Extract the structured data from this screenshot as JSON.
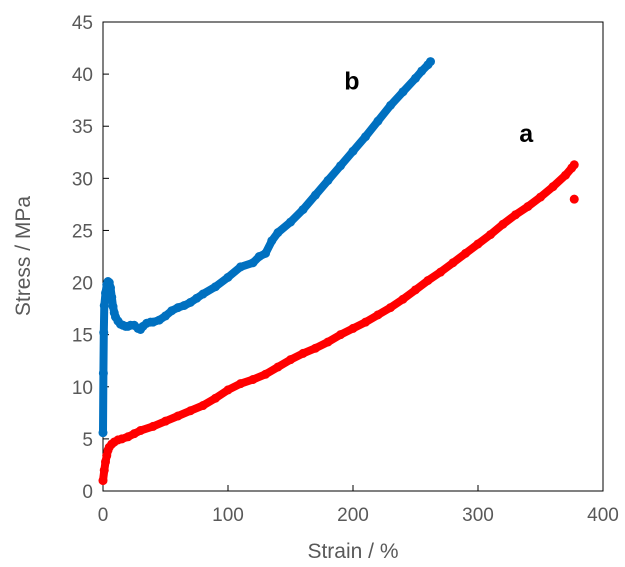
{
  "chart_data": {
    "type": "scatter",
    "title": "",
    "xlabel": "Strain / %",
    "ylabel": "Stress / MPa",
    "xlim": [
      0,
      400
    ],
    "ylim": [
      0,
      45
    ],
    "xticks": [
      "0",
      "100",
      "200",
      "300",
      "400"
    ],
    "yticks": [
      "0",
      "5",
      "10",
      "15",
      "20",
      "25",
      "30",
      "35",
      "40",
      "45"
    ],
    "grid": false,
    "legend": "none",
    "series": [
      {
        "name": "a",
        "color": "#ff0000",
        "label_at": [
          333,
          33.5
        ],
        "x": [
          0,
          1,
          2,
          3,
          4,
          5,
          7,
          9,
          12,
          15,
          20,
          25,
          30,
          40,
          50,
          60,
          70,
          80,
          90,
          100,
          110,
          120,
          130,
          140,
          150,
          160,
          170,
          180,
          190,
          200,
          210,
          220,
          230,
          240,
          250,
          260,
          270,
          280,
          290,
          300,
          310,
          320,
          330,
          340,
          350,
          360,
          370,
          375,
          377
        ],
        "y": [
          1.0,
          2.0,
          2.8,
          3.4,
          3.9,
          4.2,
          4.5,
          4.7,
          4.9,
          5.0,
          5.2,
          5.5,
          5.8,
          6.2,
          6.7,
          7.2,
          7.7,
          8.2,
          8.9,
          9.7,
          10.3,
          10.7,
          11.2,
          11.9,
          12.6,
          13.2,
          13.7,
          14.3,
          15.0,
          15.6,
          16.2,
          16.9,
          17.6,
          18.4,
          19.3,
          20.2,
          21.0,
          21.9,
          22.8,
          23.7,
          24.6,
          25.6,
          26.5,
          27.3,
          28.2,
          29.2,
          30.3,
          31.0,
          31.3
        ]
      },
      {
        "name": "b",
        "color": "#0070c0",
        "label_at": [
          193,
          38.5
        ],
        "x": [
          0,
          0.3,
          0.6,
          1,
          2,
          3,
          4,
          5,
          6,
          7,
          8,
          9,
          10,
          12,
          14,
          16,
          18,
          20,
          22,
          25,
          28,
          30,
          32,
          35,
          38,
          40,
          45,
          50,
          55,
          60,
          65,
          70,
          75,
          80,
          90,
          100,
          110,
          120,
          125,
          130,
          135,
          140,
          150,
          160,
          170,
          180,
          190,
          200,
          210,
          220,
          230,
          240,
          250,
          255,
          260,
          262
        ],
        "y": [
          5.6,
          11.3,
          15.2,
          17.8,
          19.0,
          19.8,
          20.1,
          20.0,
          19.5,
          18.6,
          17.7,
          17.1,
          16.7,
          16.3,
          16.0,
          15.9,
          15.8,
          15.8,
          15.9,
          15.9,
          15.6,
          15.5,
          15.8,
          16.1,
          16.2,
          16.2,
          16.4,
          16.8,
          17.3,
          17.6,
          17.8,
          18.1,
          18.5,
          18.9,
          19.6,
          20.5,
          21.5,
          21.9,
          22.5,
          22.8,
          24.0,
          24.8,
          25.8,
          27.0,
          28.4,
          29.8,
          31.2,
          32.6,
          34.0,
          35.5,
          37.0,
          38.3,
          39.6,
          40.3,
          40.9,
          41.2
        ]
      }
    ],
    "annotations": [
      {
        "text": "",
        "x": 377,
        "y": 28.0,
        "color": "#ff0000"
      }
    ]
  }
}
